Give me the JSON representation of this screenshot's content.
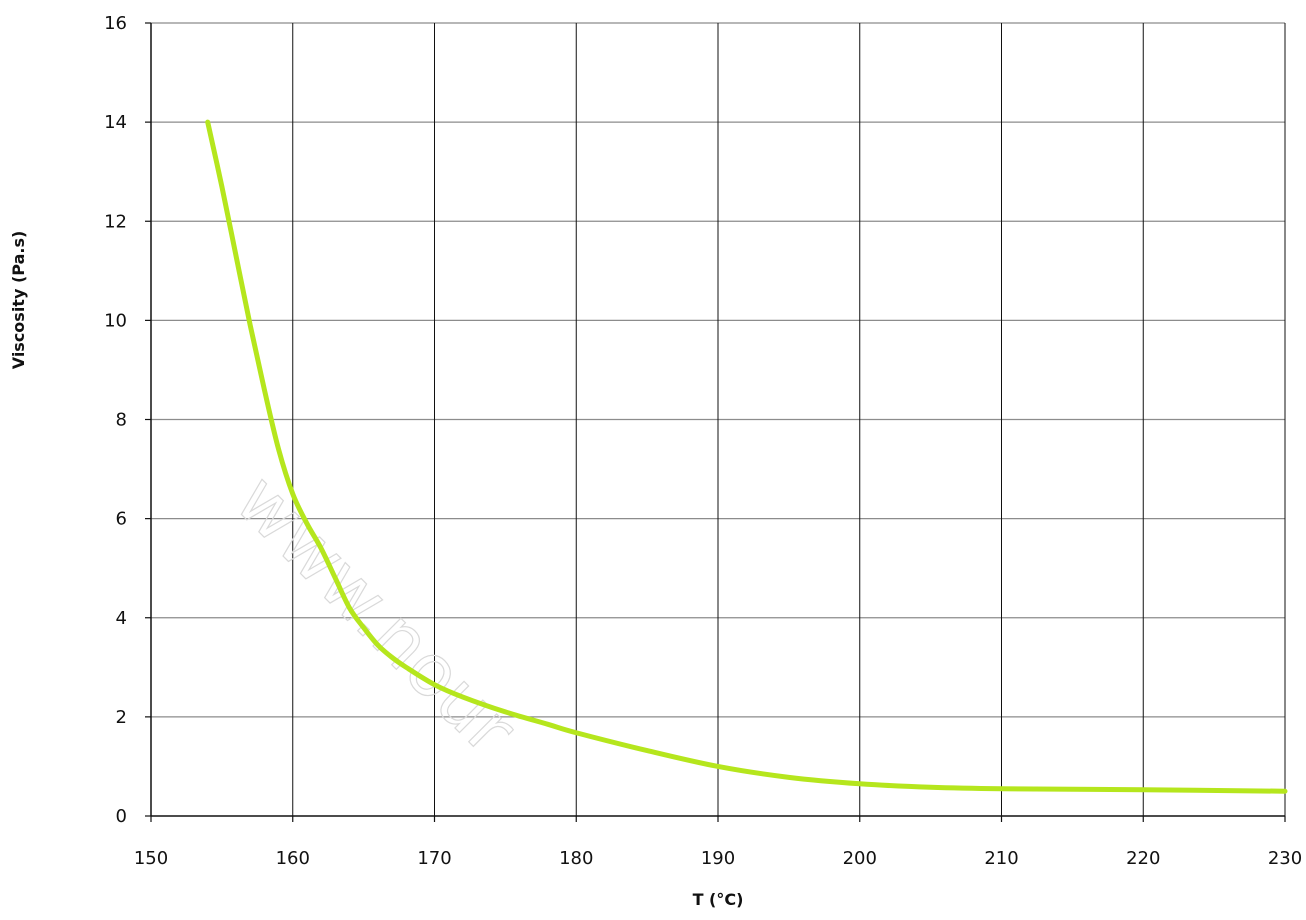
{
  "chart_data": {
    "type": "line",
    "title": "",
    "xlabel": "T (°C)",
    "ylabel": "Viscosity (Pa.s)",
    "xlim": [
      150,
      230
    ],
    "ylim": [
      0,
      16
    ],
    "xticks": [
      150,
      160,
      170,
      180,
      190,
      200,
      210,
      220,
      230
    ],
    "yticks": [
      0,
      2,
      4,
      6,
      8,
      10,
      12,
      14,
      16
    ],
    "grid": true,
    "series": [
      {
        "color": "#b5e61d",
        "x": [
          154,
          155,
          156,
          157,
          158,
          159,
          160,
          161,
          162,
          163,
          164,
          165,
          166,
          167,
          168,
          170,
          172,
          175,
          178,
          180,
          185,
          190,
          195,
          200,
          205,
          210,
          220,
          230
        ],
        "y": [
          14.0,
          12.7,
          11.3,
          9.9,
          8.6,
          7.4,
          6.5,
          5.9,
          5.4,
          4.8,
          4.2,
          3.8,
          3.45,
          3.2,
          3.0,
          2.65,
          2.4,
          2.1,
          1.85,
          1.68,
          1.32,
          1.0,
          0.78,
          0.65,
          0.58,
          0.55,
          0.53,
          0.5
        ]
      }
    ]
  },
  "watermark": "www.nour"
}
